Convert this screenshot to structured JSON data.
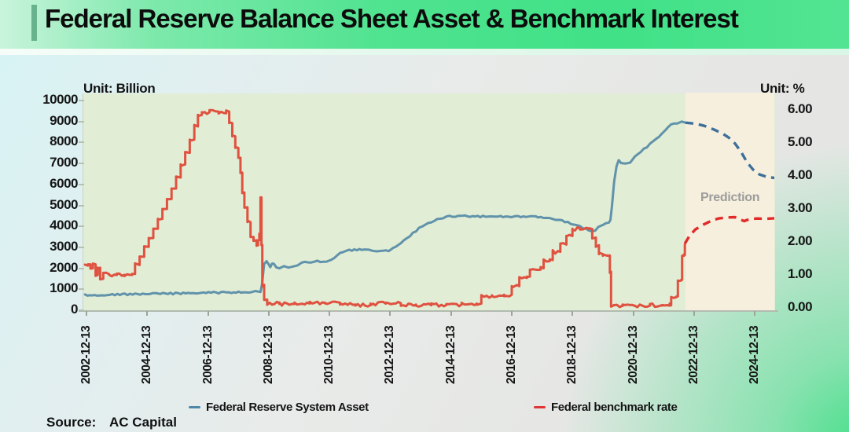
{
  "header": {
    "title": "Federal Reserve Balance Sheet Asset & Benchmark Interest",
    "accent_color": "#68b38e"
  },
  "source": {
    "label": "Source:",
    "value": "AC Capital"
  },
  "legend": [
    {
      "label": "Federal Reserve System Asset",
      "color": "#4e88a6"
    },
    {
      "label": "Federal benchmark rate",
      "color": "#e03535"
    }
  ],
  "chart_data": {
    "type": "line",
    "title": "Federal Reserve Balance Sheet Asset & Benchmark Interest",
    "left_axis": {
      "unit_label": "Unit:  Billion",
      "ticks": [
        0,
        1000,
        2000,
        3000,
        4000,
        5000,
        6000,
        7000,
        8000,
        9000,
        10000
      ],
      "range": [
        0,
        10000
      ]
    },
    "right_axis": {
      "unit_label": "Unit:  %",
      "ticks": [
        0,
        1,
        2,
        3,
        4,
        5,
        6
      ],
      "range": [
        0,
        6
      ]
    },
    "x_axis": {
      "tick_labels": [
        "2002-12-13",
        "2004-12-13",
        "2006-12-13",
        "2008-12-13",
        "2010-12-13",
        "2012-12-13",
        "2014-12-13",
        "2016-12-13",
        "2018-12-13",
        "2020-12-13",
        "2022-12-13",
        "2024-12-13"
      ],
      "grid": false
    },
    "prediction": {
      "label": "Prediction",
      "start_year": 2022.67,
      "zone_color": "#f6efdd"
    },
    "plot_bg_color": "#e2edd5",
    "legend_position": "bottom",
    "series": [
      {
        "name": "Federal Reserve System Asset",
        "axis": "left",
        "style": "solid",
        "color": "#6093ab",
        "interp": "linear",
        "noise": 1.1,
        "points": [
          [
            2002.9,
            720
          ],
          [
            2003.3,
            735
          ],
          [
            2003.8,
            748
          ],
          [
            2004.3,
            760
          ],
          [
            2004.8,
            772
          ],
          [
            2005.3,
            785
          ],
          [
            2005.8,
            798
          ],
          [
            2006.3,
            812
          ],
          [
            2006.8,
            826
          ],
          [
            2007.3,
            840
          ],
          [
            2007.8,
            855
          ],
          [
            2008.2,
            872
          ],
          [
            2008.5,
            888
          ],
          [
            2008.68,
            905
          ],
          [
            2008.73,
            1250
          ],
          [
            2008.8,
            2230
          ],
          [
            2008.88,
            2300
          ],
          [
            2008.95,
            2160
          ],
          [
            2009.0,
            2070
          ],
          [
            2009.06,
            2210
          ],
          [
            2009.12,
            2230
          ],
          [
            2009.2,
            2080
          ],
          [
            2009.3,
            2030
          ],
          [
            2009.45,
            2090
          ],
          [
            2009.6,
            2070
          ],
          [
            2009.75,
            2120
          ],
          [
            2009.9,
            2180
          ],
          [
            2010.05,
            2240
          ],
          [
            2010.25,
            2300
          ],
          [
            2010.45,
            2330
          ],
          [
            2010.65,
            2320
          ],
          [
            2010.85,
            2300
          ],
          [
            2011.0,
            2420
          ],
          [
            2011.2,
            2620
          ],
          [
            2011.4,
            2800
          ],
          [
            2011.6,
            2865
          ],
          [
            2011.85,
            2880
          ],
          [
            2012.1,
            2890
          ],
          [
            2012.35,
            2860
          ],
          [
            2012.5,
            2815
          ],
          [
            2012.7,
            2800
          ],
          [
            2012.9,
            2850
          ],
          [
            2013.05,
            2950
          ],
          [
            2013.3,
            3200
          ],
          [
            2013.6,
            3550
          ],
          [
            2013.9,
            3900
          ],
          [
            2014.2,
            4150
          ],
          [
            2014.5,
            4350
          ],
          [
            2014.8,
            4470
          ],
          [
            2015.1,
            4490
          ],
          [
            2015.5,
            4480
          ],
          [
            2016.0,
            4465
          ],
          [
            2016.5,
            4455
          ],
          [
            2017.0,
            4455
          ],
          [
            2017.5,
            4460
          ],
          [
            2017.9,
            4440
          ],
          [
            2018.2,
            4380
          ],
          [
            2018.5,
            4300
          ],
          [
            2018.8,
            4200
          ],
          [
            2019.1,
            4020
          ],
          [
            2019.4,
            3870
          ],
          [
            2019.6,
            3765
          ],
          [
            2019.7,
            3790
          ],
          [
            2019.8,
            3960
          ],
          [
            2019.95,
            4100
          ],
          [
            2020.05,
            4150
          ],
          [
            2020.15,
            4190
          ],
          [
            2020.2,
            4310
          ],
          [
            2020.25,
            5000
          ],
          [
            2020.32,
            6150
          ],
          [
            2020.4,
            6900
          ],
          [
            2020.47,
            7160
          ],
          [
            2020.55,
            7010
          ],
          [
            2020.7,
            6970
          ],
          [
            2020.85,
            7060
          ],
          [
            2021.0,
            7330
          ],
          [
            2021.2,
            7570
          ],
          [
            2021.4,
            7800
          ],
          [
            2021.6,
            8060
          ],
          [
            2021.8,
            8310
          ],
          [
            2022.0,
            8600
          ],
          [
            2022.2,
            8830
          ],
          [
            2022.4,
            8930
          ],
          [
            2022.55,
            8965
          ],
          [
            2022.67,
            8945
          ]
        ]
      },
      {
        "name": "Federal Reserve System Asset (prediction)",
        "axis": "left",
        "style": "dashed",
        "color": "#3d6f9a",
        "interp": "linear",
        "noise": 0,
        "points": [
          [
            2022.67,
            8945
          ],
          [
            2023.0,
            8900
          ],
          [
            2023.3,
            8790
          ],
          [
            2023.6,
            8620
          ],
          [
            2023.9,
            8420
          ],
          [
            2024.1,
            8230
          ],
          [
            2024.3,
            7950
          ],
          [
            2024.5,
            7550
          ],
          [
            2024.7,
            7050
          ],
          [
            2024.9,
            6700
          ],
          [
            2025.1,
            6480
          ],
          [
            2025.35,
            6360
          ],
          [
            2025.65,
            6300
          ]
        ]
      },
      {
        "name": "Federal benchmark rate",
        "axis": "right",
        "style": "solid",
        "color": "#df5240",
        "interp": "step",
        "noise": 2.2,
        "points": [
          [
            2002.9,
            1.28
          ],
          [
            2003.0,
            1.32
          ],
          [
            2003.08,
            1.2
          ],
          [
            2003.16,
            1.32
          ],
          [
            2003.25,
            1.0
          ],
          [
            2003.32,
            1.22
          ],
          [
            2003.4,
            0.88
          ],
          [
            2003.5,
            1.02
          ],
          [
            2003.7,
            1.0
          ],
          [
            2003.95,
            1.0
          ],
          [
            2004.2,
            1.0
          ],
          [
            2004.45,
            1.03
          ],
          [
            2004.55,
            1.3
          ],
          [
            2004.7,
            1.55
          ],
          [
            2004.85,
            1.85
          ],
          [
            2005.0,
            2.12
          ],
          [
            2005.15,
            2.4
          ],
          [
            2005.3,
            2.7
          ],
          [
            2005.45,
            3.0
          ],
          [
            2005.6,
            3.3
          ],
          [
            2005.75,
            3.62
          ],
          [
            2005.9,
            3.95
          ],
          [
            2006.05,
            4.35
          ],
          [
            2006.2,
            4.7
          ],
          [
            2006.35,
            5.1
          ],
          [
            2006.5,
            5.5
          ],
          [
            2006.62,
            5.85
          ],
          [
            2006.75,
            5.93
          ],
          [
            2007.0,
            5.95
          ],
          [
            2007.3,
            5.9
          ],
          [
            2007.55,
            5.95
          ],
          [
            2007.65,
            5.6
          ],
          [
            2007.75,
            5.2
          ],
          [
            2007.85,
            4.85
          ],
          [
            2007.95,
            4.55
          ],
          [
            2008.02,
            4.1
          ],
          [
            2008.08,
            3.5
          ],
          [
            2008.15,
            3.05
          ],
          [
            2008.25,
            2.6
          ],
          [
            2008.35,
            2.15
          ],
          [
            2008.45,
            2.05
          ],
          [
            2008.55,
            1.9
          ],
          [
            2008.6,
            2.05
          ],
          [
            2008.64,
            2.25
          ],
          [
            2008.68,
            3.35
          ],
          [
            2008.71,
            1.9
          ],
          [
            2008.74,
            0.7
          ],
          [
            2008.8,
            0.25
          ],
          [
            2008.9,
            0.14
          ],
          [
            2009.3,
            0.12
          ],
          [
            2009.8,
            0.13
          ],
          [
            2010.3,
            0.15
          ],
          [
            2010.8,
            0.16
          ],
          [
            2011.3,
            0.1
          ],
          [
            2011.8,
            0.09
          ],
          [
            2012.3,
            0.13
          ],
          [
            2012.8,
            0.14
          ],
          [
            2013.3,
            0.1
          ],
          [
            2013.8,
            0.08
          ],
          [
            2014.3,
            0.09
          ],
          [
            2014.8,
            0.1
          ],
          [
            2015.3,
            0.12
          ],
          [
            2015.8,
            0.13
          ],
          [
            2015.95,
            0.36
          ],
          [
            2016.3,
            0.38
          ],
          [
            2016.7,
            0.4
          ],
          [
            2016.95,
            0.66
          ],
          [
            2017.2,
            0.91
          ],
          [
            2017.45,
            0.95
          ],
          [
            2017.55,
            1.16
          ],
          [
            2017.9,
            1.2
          ],
          [
            2018.0,
            1.42
          ],
          [
            2018.2,
            1.45
          ],
          [
            2018.3,
            1.7
          ],
          [
            2018.55,
            1.92
          ],
          [
            2018.75,
            2.18
          ],
          [
            2018.95,
            2.4
          ],
          [
            2019.2,
            2.41
          ],
          [
            2019.5,
            2.39
          ],
          [
            2019.6,
            2.13
          ],
          [
            2019.72,
            1.9
          ],
          [
            2019.82,
            1.63
          ],
          [
            2019.95,
            1.58
          ],
          [
            2020.1,
            1.59
          ],
          [
            2020.18,
            1.1
          ],
          [
            2020.22,
            0.07
          ],
          [
            2020.6,
            0.06
          ],
          [
            2021.0,
            0.07
          ],
          [
            2021.5,
            0.08
          ],
          [
            2021.9,
            0.07
          ],
          [
            2022.15,
            0.08
          ],
          [
            2022.2,
            0.33
          ],
          [
            2022.38,
            0.35
          ],
          [
            2022.42,
            0.83
          ],
          [
            2022.53,
            0.85
          ],
          [
            2022.56,
            1.58
          ],
          [
            2022.62,
            1.6
          ],
          [
            2022.65,
            1.92
          ]
        ]
      },
      {
        "name": "Federal benchmark rate (prediction)",
        "axis": "right",
        "style": "dashed",
        "color": "#e22a2a",
        "interp": "linear",
        "noise": 0,
        "points": [
          [
            2022.65,
            1.95
          ],
          [
            2022.8,
            2.18
          ],
          [
            2023.0,
            2.38
          ],
          [
            2023.25,
            2.52
          ],
          [
            2023.5,
            2.63
          ],
          [
            2023.75,
            2.71
          ],
          [
            2024.0,
            2.74
          ],
          [
            2024.3,
            2.75
          ],
          [
            2024.45,
            2.69
          ],
          [
            2024.6,
            2.63
          ],
          [
            2024.8,
            2.7
          ],
          [
            2025.05,
            2.71
          ],
          [
            2025.3,
            2.7
          ],
          [
            2025.65,
            2.72
          ]
        ]
      }
    ]
  }
}
